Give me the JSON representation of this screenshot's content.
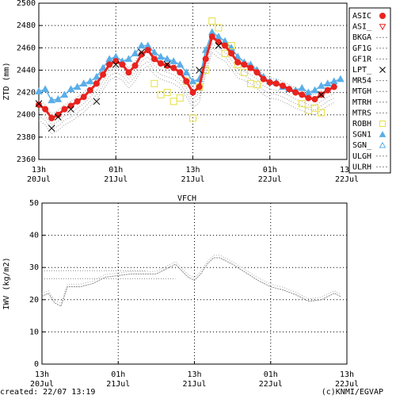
{
  "footer": {
    "created": "created: 22/07 13:19",
    "credit": "(c)KNMI/EGVAP"
  },
  "colors": {
    "asic": "#e8231e",
    "asi_": "#e8231e",
    "robh": "#e6e040",
    "sgn1": "#5aaee8",
    "sgn_": "#5aaee8",
    "lpt": "#000000",
    "dotted": "#888888"
  },
  "chart_data": [
    {
      "type": "scatter",
      "ylabel": "ZTD (mm)",
      "ylim": [
        2360,
        2500
      ],
      "yticks": [
        2360,
        2380,
        2400,
        2420,
        2440,
        2460,
        2480,
        2500
      ],
      "xlim": [
        0,
        48
      ],
      "xticks": [
        {
          "x": 0,
          "label1": "13h",
          "label2": "20Jul"
        },
        {
          "x": 12,
          "label1": "01h",
          "label2": "21Jul"
        },
        {
          "x": 24,
          "label1": "13h",
          "label2": "21Jul"
        },
        {
          "x": 36,
          "label1": "01h",
          "label2": "22Jul"
        },
        {
          "x": 48,
          "label1": "13h",
          "label2": "22Jul"
        }
      ],
      "grid": true,
      "legend_position": "right",
      "legend": [
        {
          "name": "ASIC",
          "style": "filled-circle",
          "color": "#e8231e"
        },
        {
          "name": "ASI_",
          "style": "open-triangle-down",
          "color": "#e8231e"
        },
        {
          "name": "BKGA",
          "style": "dotted",
          "color": "#888888"
        },
        {
          "name": "GF1G",
          "style": "dotted",
          "color": "#888888"
        },
        {
          "name": "GF1R",
          "style": "dotted",
          "color": "#888888"
        },
        {
          "name": "LPT_",
          "style": "x",
          "color": "#000000"
        },
        {
          "name": "MR54",
          "style": "dotted",
          "color": "#888888"
        },
        {
          "name": "MTGH",
          "style": "dotted",
          "color": "#888888"
        },
        {
          "name": "MTRH",
          "style": "dotted",
          "color": "#888888"
        },
        {
          "name": "MTRS",
          "style": "dotted",
          "color": "#888888"
        },
        {
          "name": "ROBH",
          "style": "open-square",
          "color": "#e6e040"
        },
        {
          "name": "SGN1",
          "style": "filled-triangle-up",
          "color": "#5aaee8"
        },
        {
          "name": "SGN_",
          "style": "open-triangle-up",
          "color": "#5aaee8"
        },
        {
          "name": "ULGH",
          "style": "dotted",
          "color": "#888888"
        },
        {
          "name": "ULRH",
          "style": "dotted",
          "color": "#888888"
        }
      ],
      "series": [
        {
          "name": "ASIC",
          "marker": "filled-circle",
          "x": [
            0,
            1,
            2,
            3,
            4,
            5,
            6,
            7,
            8,
            9,
            10,
            11,
            12,
            13,
            14,
            15,
            16,
            17,
            18,
            19,
            20,
            21,
            22,
            23,
            24,
            25,
            26,
            27,
            28,
            29,
            30,
            31,
            32,
            33,
            34,
            35,
            36,
            37,
            38,
            39,
            40,
            41,
            42,
            43,
            44,
            45,
            46
          ],
          "y": [
            2409,
            2405,
            2397,
            2400,
            2405,
            2408,
            2412,
            2416,
            2422,
            2428,
            2436,
            2445,
            2448,
            2445,
            2438,
            2444,
            2454,
            2458,
            2450,
            2446,
            2444,
            2442,
            2438,
            2430,
            2420,
            2425,
            2450,
            2470,
            2465,
            2462,
            2455,
            2447,
            2445,
            2442,
            2438,
            2432,
            2429,
            2428,
            2426,
            2423,
            2420,
            2418,
            2415,
            2414,
            2418,
            2422,
            2425
          ]
        },
        {
          "name": "SGN1",
          "marker": "filled-triangle-up",
          "x": [
            0,
            1,
            2,
            3,
            4,
            5,
            6,
            7,
            8,
            9,
            10,
            11,
            12,
            13,
            14,
            15,
            16,
            17,
            18,
            19,
            20,
            21,
            22,
            23,
            24,
            25,
            26,
            27,
            28,
            29,
            30,
            31,
            32,
            33,
            34,
            35,
            36,
            37,
            38,
            39,
            40,
            41,
            42,
            43,
            44,
            45,
            46,
            47
          ],
          "y": [
            2421,
            2423,
            2413,
            2414,
            2418,
            2423,
            2425,
            2428,
            2430,
            2434,
            2442,
            2450,
            2452,
            2448,
            2450,
            2455,
            2462,
            2462,
            2456,
            2452,
            2450,
            2448,
            2445,
            2438,
            2430,
            2432,
            2458,
            2474,
            2470,
            2466,
            2460,
            2452,
            2447,
            2445,
            2440,
            2434,
            2430,
            2429,
            2425,
            2423,
            2422,
            2424,
            2420,
            2422,
            2426,
            2428,
            2430,
            2432
          ]
        },
        {
          "name": "ROBH",
          "marker": "open-square",
          "x": [
            18,
            19,
            20,
            21,
            22,
            23,
            24,
            25,
            26,
            27,
            28,
            29,
            30,
            31,
            32,
            33,
            34,
            41,
            42,
            43,
            44
          ],
          "y": [
            2428,
            2418,
            2420,
            2412,
            2415,
            2430,
            2397,
            2425,
            2440,
            2484,
            2478,
            2455,
            2462,
            2445,
            2438,
            2428,
            2427,
            2410,
            2404,
            2406,
            2402
          ]
        },
        {
          "name": "LPT_",
          "marker": "x",
          "x": [
            0,
            2,
            3,
            5,
            9,
            12,
            16,
            20,
            25,
            28,
            44
          ],
          "y": [
            2410,
            2388,
            2398,
            2405,
            2412,
            2445,
            2456,
            2445,
            2440,
            2462,
            2418
          ]
        }
      ]
    },
    {
      "type": "line",
      "title": "VFCH",
      "ylabel": "IWV (kg/m2)",
      "ylim": [
        0,
        50
      ],
      "yticks": [
        0,
        10,
        20,
        30,
        40,
        50
      ],
      "xlim": [
        0,
        48
      ],
      "xticks": [
        {
          "x": 0,
          "label1": "13h",
          "label2": "20Jul"
        },
        {
          "x": 12,
          "label1": "01h",
          "label2": "21Jul"
        },
        {
          "x": 24,
          "label1": "13h",
          "label2": "21Jul"
        },
        {
          "x": 36,
          "label1": "01h",
          "label2": "22Jul"
        },
        {
          "x": 48,
          "label1": "13h",
          "label2": "22Jul"
        }
      ],
      "grid": true,
      "series": [
        {
          "x": [
            0,
            1,
            2,
            3,
            4,
            6,
            8,
            10,
            12,
            14,
            16,
            18,
            20,
            21,
            22,
            23,
            24,
            25,
            26,
            27,
            28,
            30,
            32,
            34,
            36,
            38,
            40,
            42,
            44,
            46,
            47
          ],
          "y": [
            21,
            22,
            19,
            18,
            24,
            24,
            25,
            27,
            27.5,
            28,
            28,
            28,
            30,
            31,
            29,
            27,
            26,
            28,
            31,
            33,
            33,
            31,
            28.5,
            26,
            24,
            23,
            21.5,
            19.5,
            20,
            22,
            21
          ]
        },
        {
          "x": [
            0,
            16.5
          ],
          "y": [
            29,
            29
          ]
        },
        {
          "x": [
            0,
            21
          ],
          "y": [
            26.5,
            26.5
          ]
        }
      ]
    }
  ]
}
